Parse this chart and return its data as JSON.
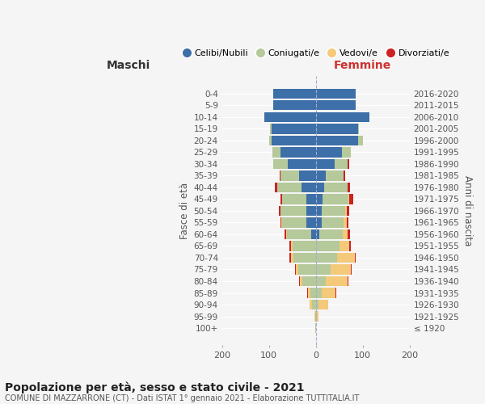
{
  "age_groups": [
    "100+",
    "95-99",
    "90-94",
    "85-89",
    "80-84",
    "75-79",
    "70-74",
    "65-69",
    "60-64",
    "55-59",
    "50-54",
    "45-49",
    "40-44",
    "35-39",
    "30-34",
    "25-29",
    "20-24",
    "15-19",
    "10-14",
    "5-9",
    "0-4"
  ],
  "birth_years": [
    "≤ 1920",
    "1921-1925",
    "1926-1930",
    "1931-1935",
    "1936-1940",
    "1941-1945",
    "1946-1950",
    "1951-1955",
    "1956-1960",
    "1961-1965",
    "1966-1970",
    "1971-1975",
    "1976-1980",
    "1981-1985",
    "1986-1990",
    "1991-1995",
    "1996-2000",
    "2001-2005",
    "2006-2010",
    "2011-2015",
    "2016-2020"
  ],
  "males": {
    "celibi": [
      0,
      0,
      0,
      0,
      0,
      0,
      0,
      0,
      10,
      20,
      20,
      20,
      30,
      35,
      60,
      75,
      95,
      95,
      110,
      90,
      90
    ],
    "coniugati": [
      1,
      2,
      8,
      12,
      28,
      38,
      48,
      50,
      52,
      52,
      55,
      52,
      52,
      40,
      30,
      18,
      5,
      2,
      0,
      0,
      0
    ],
    "vedovi": [
      0,
      1,
      5,
      4,
      6,
      5,
      5,
      3,
      2,
      1,
      0,
      0,
      0,
      0,
      0,
      0,
      0,
      0,
      0,
      0,
      0
    ],
    "divorziati": [
      1,
      0,
      1,
      3,
      2,
      1,
      3,
      3,
      3,
      2,
      3,
      3,
      5,
      2,
      1,
      0,
      0,
      0,
      0,
      0,
      0
    ]
  },
  "females": {
    "nubili": [
      0,
      0,
      0,
      0,
      0,
      0,
      0,
      0,
      8,
      12,
      12,
      15,
      18,
      22,
      40,
      55,
      90,
      90,
      115,
      85,
      85
    ],
    "coniugate": [
      0,
      2,
      6,
      12,
      22,
      32,
      45,
      50,
      50,
      48,
      50,
      55,
      50,
      38,
      28,
      20,
      10,
      2,
      0,
      0,
      0
    ],
    "vedove": [
      1,
      3,
      20,
      30,
      45,
      42,
      38,
      22,
      10,
      6,
      4,
      2,
      0,
      0,
      0,
      0,
      0,
      0,
      0,
      0,
      0
    ],
    "divorziate": [
      0,
      0,
      1,
      2,
      2,
      2,
      2,
      2,
      5,
      4,
      5,
      8,
      5,
      2,
      3,
      0,
      0,
      0,
      0,
      0,
      0
    ]
  },
  "colors": {
    "celibi": "#3d6fa8",
    "coniugati": "#b5c99a",
    "vedovi": "#f5c97a",
    "divorziati": "#cc2222"
  },
  "title": "Popolazione per età, sesso e stato civile - 2021",
  "subtitle": "COMUNE DI MAZZARRONE (CT) - Dati ISTAT 1° gennaio 2021 - Elaborazione TUTTITALIA.IT",
  "xlabel_left": "Maschi",
  "xlabel_right": "Femmine",
  "ylabel_left": "Fasce di età",
  "ylabel_right": "Anni di nascita",
  "xlim": 200,
  "legend_labels": [
    "Celibi/Nubili",
    "Coniugati/e",
    "Vedovi/e",
    "Divorziati/e"
  ],
  "bg_color": "#f5f5f5"
}
